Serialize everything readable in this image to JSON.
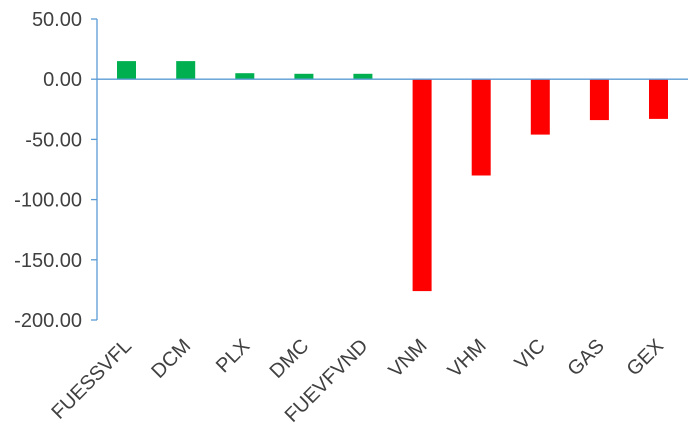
{
  "chart_data": {
    "type": "bar",
    "categories": [
      "FUESSVFL",
      "DCM",
      "PLX",
      "DMC",
      "FUEVFVND",
      "VNM",
      "VHM",
      "VIC",
      "GAS",
      "GEX"
    ],
    "values": [
      15,
      15,
      5,
      4.5,
      4.5,
      -176,
      -80,
      -46,
      -34,
      -33
    ],
    "ylim": [
      -200,
      50
    ],
    "yticks": [
      "50.00",
      "0.00",
      "-50.00",
      "-100.00",
      "-150.00",
      "-200.00"
    ],
    "ytick_values": [
      50,
      0,
      -50,
      -100,
      -150,
      -200
    ],
    "title": "",
    "xlabel": "",
    "ylabel": "",
    "grid": false,
    "legend": "none",
    "colors": {
      "positive": "#00b050",
      "negative": "#ff0000",
      "axis": "#5b9bd5",
      "text": "#404040"
    }
  }
}
